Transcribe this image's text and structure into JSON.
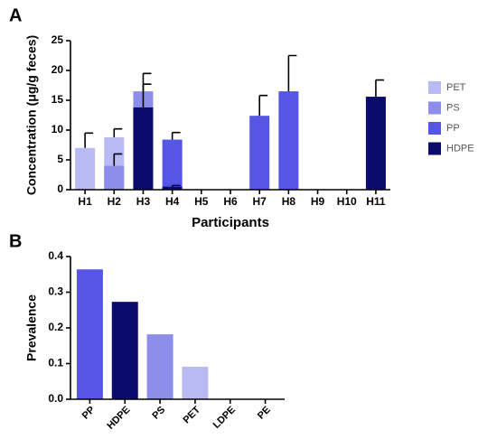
{
  "chart_data": [
    {
      "type": "bar",
      "label": "A",
      "categories": [
        "H1",
        "H2",
        "H3",
        "H4",
        "H5",
        "H6",
        "H7",
        "H8",
        "H9",
        "H10",
        "H11"
      ],
      "series": [
        {
          "name": "PET",
          "color": "#b9b9f4",
          "values": [
            7,
            8.8,
            null,
            null,
            null,
            null,
            null,
            null,
            null,
            null,
            null
          ],
          "errors": [
            2.5,
            1.4,
            null,
            null,
            null,
            null,
            null,
            null,
            null,
            null,
            null
          ]
        },
        {
          "name": "PS",
          "color": "#8d8dea",
          "values": [
            null,
            4,
            16.5,
            null,
            null,
            null,
            null,
            null,
            null,
            null,
            null
          ],
          "errors": [
            null,
            2,
            1.2,
            null,
            null,
            null,
            null,
            null,
            null,
            null,
            null
          ]
        },
        {
          "name": "PP",
          "color": "#5555e6",
          "values": [
            null,
            null,
            null,
            8.4,
            null,
            null,
            12.4,
            16.5,
            null,
            null,
            null
          ],
          "errors": [
            null,
            null,
            null,
            1.2,
            null,
            null,
            3.4,
            6,
            null,
            null,
            null
          ]
        },
        {
          "name": "HDPE",
          "color": "#0b0b6b",
          "values": [
            null,
            null,
            13.8,
            0.5,
            null,
            null,
            null,
            null,
            null,
            null,
            15.6
          ],
          "errors": [
            null,
            null,
            5.7,
            0.2,
            null,
            null,
            null,
            null,
            null,
            null,
            2.8
          ]
        }
      ],
      "y_label": "Concentration (μg/g feces)",
      "x_label": "Participants",
      "ylim": [
        0,
        25
      ],
      "yticks": [
        0,
        5,
        10,
        15,
        20,
        25
      ],
      "legend": "right"
    },
    {
      "type": "bar",
      "label": "B",
      "categories": [
        "PP",
        "HDPE",
        "PS",
        "PET",
        "LDPE",
        "PE"
      ],
      "values": [
        0.364,
        0.273,
        0.182,
        0.091,
        0,
        0
      ],
      "colors": [
        "#5555e6",
        "#0b0b6b",
        "#8d8dea",
        "#b9b9f4",
        "#b9b9f4",
        "#b9b9f4"
      ],
      "y_label": "Prevalence",
      "ylim": [
        0,
        0.4
      ],
      "yticks": [
        {
          "value": 0,
          "label": "0.0"
        },
        0.1,
        0.2,
        0.3,
        0.4
      ]
    }
  ]
}
